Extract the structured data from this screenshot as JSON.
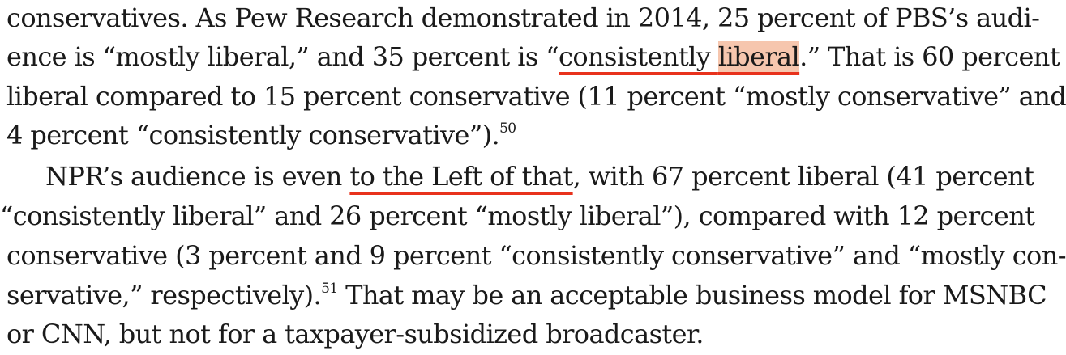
{
  "lines": {
    "l1": "conservatives. As Pew Research demonstrated in 2014, 25 percent of PBS’s audi-",
    "l2_a": "ence is “mostly liberal,” and 35 percent is “",
    "l2_b": "consistently ",
    "l2_c": "liberal",
    "l2_d": ".” That is 60 percent",
    "l3": "liberal compared to 15 percent conservative (11 percent “mostly conservative” and",
    "l4_a": "4 percent “consistently conservative”).",
    "l4_sup": "50",
    "l5_a": "NPR’s audience is even ",
    "l5_b": "to the Left of that",
    "l5_c": ", with 67 percent liberal (41 percent",
    "l6": "“consistently liberal” and 26 percent “mostly liberal”), compared with 12 percent",
    "l7": "conservative (3 percent and 9 percent “consistently conservative” and “mostly con-",
    "l8_a": "servative,” respectively).",
    "l8_sup": "51",
    "l8_b": " That may be an acceptable business model for MSNBC",
    "l9": "or CNN, but not for a taxpayer-subsidized broadcaster."
  },
  "colors": {
    "highlight": "#f6c6ae",
    "underline": "#e8321c",
    "text": "#1a1a1a"
  }
}
